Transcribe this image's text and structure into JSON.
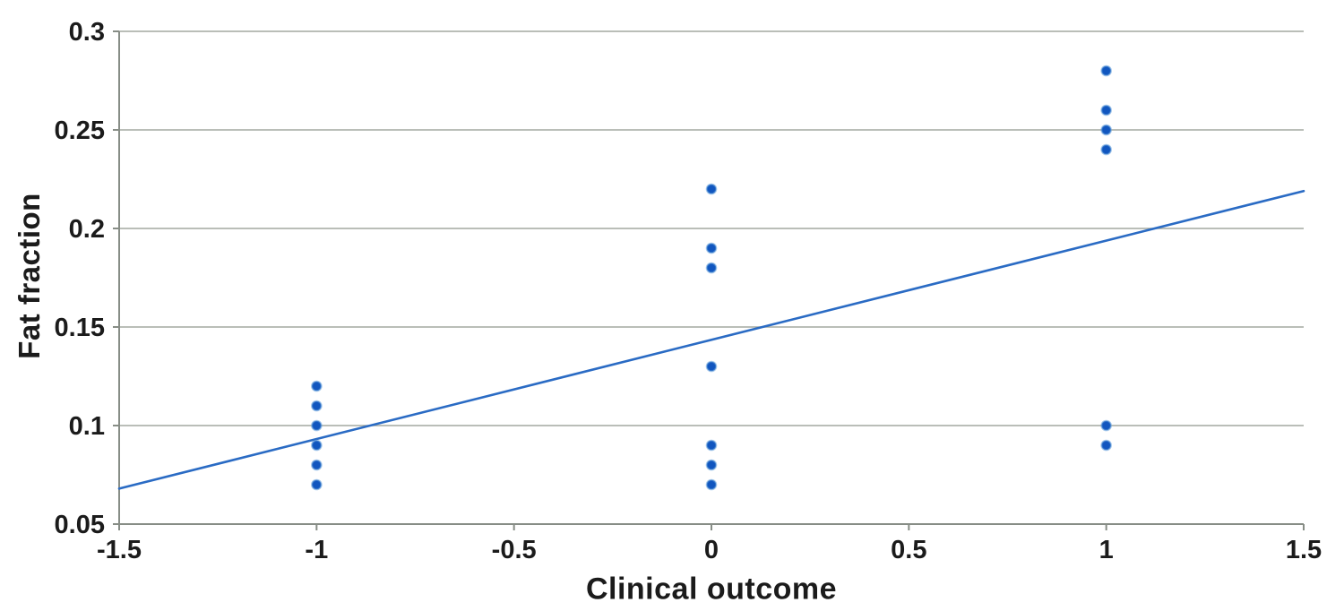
{
  "chart_data": {
    "type": "scatter",
    "title": "",
    "xlabel": "Clinical outcome",
    "ylabel": "Fat fraction",
    "xlim": [
      -1.5,
      1.5
    ],
    "ylim": [
      0.05,
      0.3
    ],
    "grid": "horizontal",
    "legend": "none",
    "x_ticks": [
      -1.5,
      -1,
      -0.5,
      0,
      0.5,
      1,
      1.5
    ],
    "x_tick_labels": [
      "-1.5",
      "-1",
      "-0.5",
      "0",
      "0.5",
      "1",
      "1.5"
    ],
    "y_ticks": [
      0.05,
      0.1,
      0.15,
      0.2,
      0.25,
      0.3
    ],
    "y_tick_labels": [
      "0.05",
      "0.1",
      "0.15",
      "0.2",
      "0.25",
      "0.3"
    ],
    "series": [
      {
        "name": "fat-fraction-points",
        "points": [
          [
            -1,
            0.12
          ],
          [
            -1,
            0.11
          ],
          [
            -1,
            0.1
          ],
          [
            -1,
            0.09
          ],
          [
            -1,
            0.08
          ],
          [
            -1,
            0.07
          ],
          [
            0,
            0.22
          ],
          [
            0,
            0.19
          ],
          [
            0,
            0.18
          ],
          [
            0,
            0.13
          ],
          [
            0,
            0.09
          ],
          [
            0,
            0.08
          ],
          [
            0,
            0.07
          ],
          [
            1,
            0.28
          ],
          [
            1,
            0.26
          ],
          [
            1,
            0.25
          ],
          [
            1,
            0.24
          ],
          [
            1,
            0.1
          ],
          [
            1,
            0.09
          ]
        ]
      }
    ],
    "trend_line": {
      "x1": -1.5,
      "y1": 0.068,
      "x2": 1.5,
      "y2": 0.219
    },
    "colors": {
      "point_fill": "#1156bf",
      "point_halo": "#5d9ad8",
      "trend": "#2a6bc4",
      "grid": "#a3a8a0",
      "axis": "#878d86",
      "text": "#1b1b1b",
      "background": "#ffffff"
    }
  }
}
